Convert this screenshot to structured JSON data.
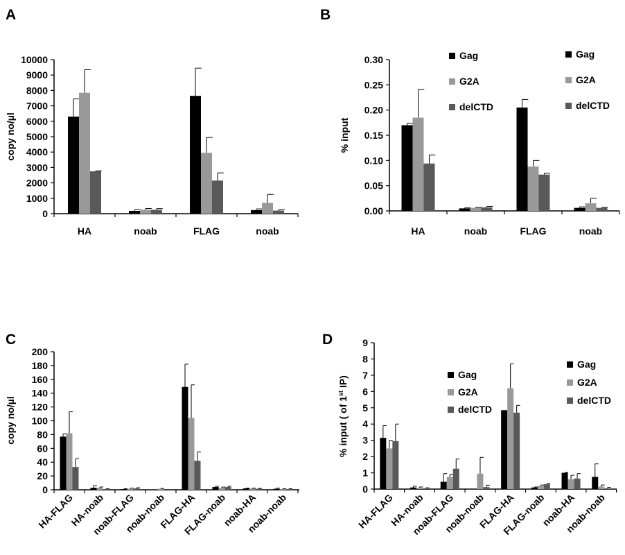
{
  "colors": {
    "Gag": "#000000",
    "G2A": "#999999",
    "delCTD": "#595959"
  },
  "chart_data": [
    {
      "panel": "A",
      "type": "bar",
      "ylabel": "copy no/µl",
      "ylim": [
        0,
        10000
      ],
      "yticks": [
        "0",
        "1000",
        "2000",
        "3000",
        "4000",
        "5000",
        "6000",
        "7000",
        "8000",
        "9000",
        "10000"
      ],
      "categories": [
        "HA",
        "noab",
        "FLAG",
        "noab"
      ],
      "legend": [
        "Gag",
        "G2A",
        "delCTD"
      ],
      "legend_position": "top-right",
      "series": [
        {
          "name": "Gag",
          "values": [
            6300,
            180,
            7650,
            230
          ],
          "errors": [
            1150,
            80,
            1800,
            80
          ]
        },
        {
          "name": "G2A",
          "values": [
            7850,
            260,
            3950,
            700
          ],
          "errors": [
            1500,
            80,
            1000,
            550
          ]
        },
        {
          "name": "delCTD",
          "values": [
            2750,
            250,
            2150,
            200
          ],
          "errors": [
            30,
            80,
            500,
            60
          ]
        }
      ]
    },
    {
      "panel": "B",
      "type": "bar",
      "ylabel": "% input",
      "ylim": [
        0,
        0.3
      ],
      "yticks": [
        "0.00",
        "0.05",
        "0.10",
        "0.15",
        "0.20",
        "0.25",
        "0.30"
      ],
      "categories": [
        "HA",
        "noab",
        "FLAG",
        "noab"
      ],
      "legend": [
        "Gag",
        "G2A",
        "delCTD"
      ],
      "legend_position": "top-right",
      "series": [
        {
          "name": "Gag",
          "values": [
            0.17,
            0.005,
            0.205,
            0.006
          ],
          "errors": [
            0.004,
            0.001,
            0.016,
            0.002
          ]
        },
        {
          "name": "G2A",
          "values": [
            0.185,
            0.006,
            0.088,
            0.015
          ],
          "errors": [
            0.056,
            0.001,
            0.012,
            0.01
          ]
        },
        {
          "name": "delCTD",
          "values": [
            0.094,
            0.007,
            0.072,
            0.006
          ],
          "errors": [
            0.017,
            0.002,
            0.003,
            0.001
          ]
        }
      ]
    },
    {
      "panel": "C",
      "type": "bar",
      "ylabel": "copy no/µl",
      "ylim": [
        0,
        200
      ],
      "yticks": [
        "0",
        "20",
        "40",
        "60",
        "80",
        "100",
        "120",
        "140",
        "160",
        "180",
        "200"
      ],
      "categories": [
        "HA-FLAG",
        "HA-noab",
        "noab-FLAG",
        "noab-noab",
        "FLAG-HA",
        "FLAG-noab",
        "noab-HA",
        "noab-noab"
      ],
      "legend": [
        "Gag",
        "G2A",
        "delCTD"
      ],
      "legend_position": "top-right",
      "series": [
        {
          "name": "Gag",
          "values": [
            77,
            3,
            1,
            0,
            149,
            4,
            2,
            1.5
          ],
          "errors": [
            4,
            3,
            0.5,
            0,
            33,
            1,
            0.5,
            1
          ]
        },
        {
          "name": "G2A",
          "values": [
            82,
            3,
            1.5,
            1.5,
            104,
            3,
            2,
            1
          ],
          "errors": [
            31,
            1,
            1,
            0.5,
            48,
            1,
            0.5,
            0.5
          ]
        },
        {
          "name": "delCTD",
          "values": [
            33,
            1,
            2,
            0,
            42,
            4,
            1.5,
            1
          ],
          "errors": [
            12,
            0.5,
            1,
            0,
            13,
            1,
            0.5,
            0.5
          ]
        }
      ]
    },
    {
      "panel": "D",
      "type": "bar",
      "ylabel_main": "% input ( of 1",
      "ylabel_sup": "st",
      "ylabel_end": " IP)",
      "ylim": [
        0,
        9
      ],
      "yticks": [
        "0",
        "1",
        "2",
        "3",
        "4",
        "5",
        "6",
        "7",
        "8",
        "9"
      ],
      "categories": [
        "HA-FLAG",
        "HA-noab",
        "noab-FLAG",
        "noab-noab",
        "FLAG-HA",
        "FLAG-noab",
        "noab-HA",
        "noab-noab"
      ],
      "legend": [
        "Gag",
        "G2A",
        "delCTD"
      ],
      "legend_position": "top-right",
      "series": [
        {
          "name": "Gag",
          "values": [
            3.15,
            0.1,
            0.45,
            0,
            4.85,
            0.1,
            1.0,
            0.75
          ],
          "errors": [
            0.75,
            0.08,
            0.5,
            0,
            0,
            0.03,
            0.02,
            0.8
          ]
        },
        {
          "name": "G2A",
          "values": [
            2.5,
            0.08,
            0.75,
            0.95,
            6.2,
            0.2,
            0.6,
            0.15
          ],
          "errors": [
            0.5,
            0.05,
            0.15,
            1.0,
            1.5,
            0.05,
            0.25,
            0.1
          ]
        },
        {
          "name": "delCTD",
          "values": [
            2.95,
            0.05,
            1.25,
            0.12,
            4.7,
            0.3,
            0.65,
            0.05
          ],
          "errors": [
            1.05,
            0.03,
            0.6,
            0.12,
            0.45,
            0.05,
            0.3,
            0.05
          ]
        }
      ]
    }
  ]
}
